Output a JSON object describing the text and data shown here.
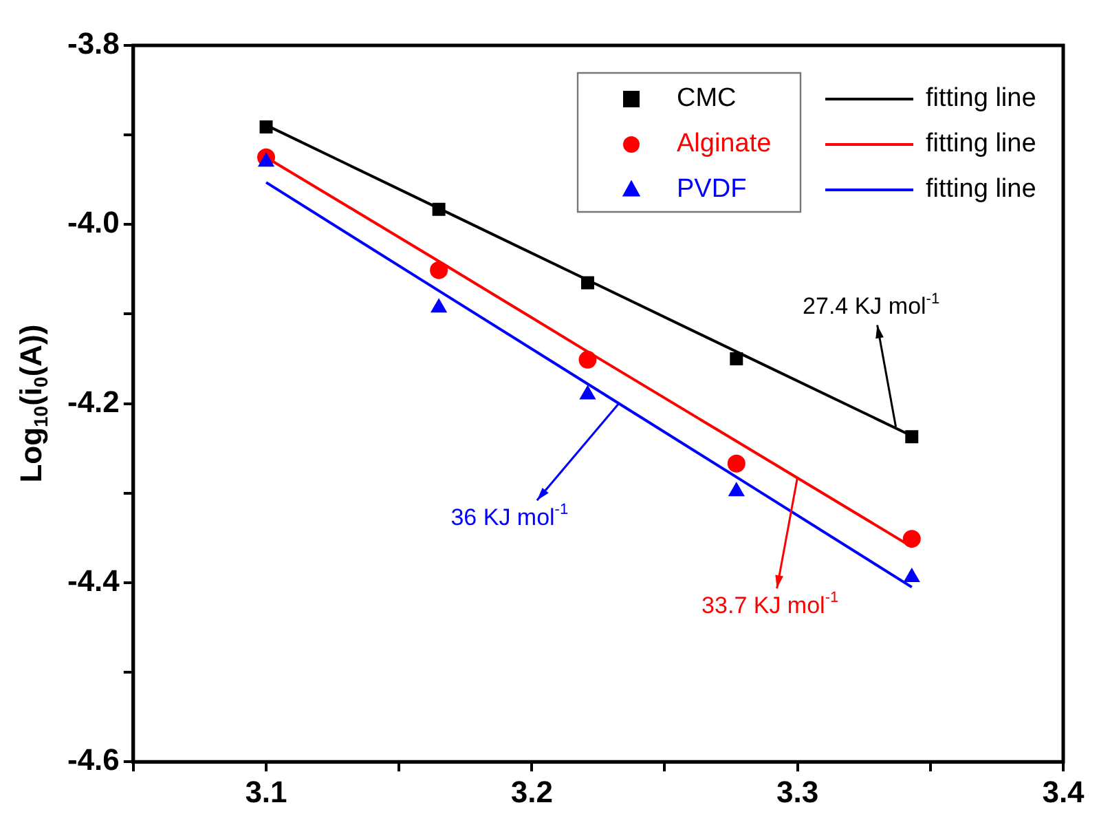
{
  "chart_data": {
    "type": "scatter",
    "ylabel": "Log$_{10}$(i$_{0}$(A))",
    "xlim": [
      3.05,
      3.4
    ],
    "xticks": [
      {
        "value": 3.05,
        "label": null
      },
      3.1,
      {
        "value": 3.15,
        "label": null
      },
      3.2,
      {
        "value": 3.25,
        "label": null
      },
      3.3,
      {
        "value": 3.35,
        "label": null
      },
      3.4
    ],
    "ylim": [
      -4.6,
      -3.8
    ],
    "yticks": [
      {
        "value": -4.6,
        "label": "-4.6"
      },
      {
        "value": -4.5,
        "label": null
      },
      {
        "value": -4.4,
        "label": "-4.4"
      },
      {
        "value": -4.3,
        "label": null
      },
      {
        "value": -4.2,
        "label": "-4.2"
      },
      {
        "value": -4.1,
        "label": null
      },
      {
        "value": -4.0,
        "label": "-4.0"
      },
      {
        "value": -3.9,
        "label": null
      },
      {
        "value": -3.8,
        "label": "-3.8"
      }
    ],
    "x": [
      3.1,
      3.165,
      3.221,
      3.277,
      3.343
    ],
    "series": [
      {
        "name": "CMC",
        "color": "#000000",
        "marker": "square",
        "values": [
          -3.891,
          -3.983,
          -4.065,
          -4.15,
          -4.237
        ]
      },
      {
        "name": "Alginate",
        "color": "#ff0000",
        "marker": "circle",
        "values": [
          -3.925,
          -4.051,
          -4.151,
          -4.267,
          -4.351
        ]
      },
      {
        "name": "PVDF",
        "color": "#0000ff",
        "marker": "triangle",
        "values": [
          -3.93,
          -4.093,
          -4.19,
          -4.298,
          -4.394
        ]
      },
      {
        "name": "fitting line",
        "type": "line",
        "color": "#000000",
        "values": [
          -3.889,
          -3.982,
          -4.062,
          -4.142,
          -4.236
        ]
      },
      {
        "name": "fitting line",
        "type": "line",
        "color": "#ff0000",
        "values": [
          -3.925,
          -4.041,
          -4.142,
          -4.242,
          -4.36
        ]
      },
      {
        "name": "fitting line",
        "type": "line",
        "color": "#0000ff",
        "values": [
          -3.953,
          -4.074,
          -4.178,
          -4.282,
          -4.405
        ]
      }
    ],
    "annotations": [
      {
        "text": "27.4 KJ mol$^{-1}$",
        "x": 3.337,
        "y": -4.226
      },
      {
        "text": "33.7 KJ mol$^{-1}$",
        "x": 3.3,
        "y": -4.282
      },
      {
        "text": "36 KJ mol$^{-1}$",
        "x": 3.233,
        "y": -4.199
      }
    ],
    "legend": "top right",
    "grid": false
  }
}
